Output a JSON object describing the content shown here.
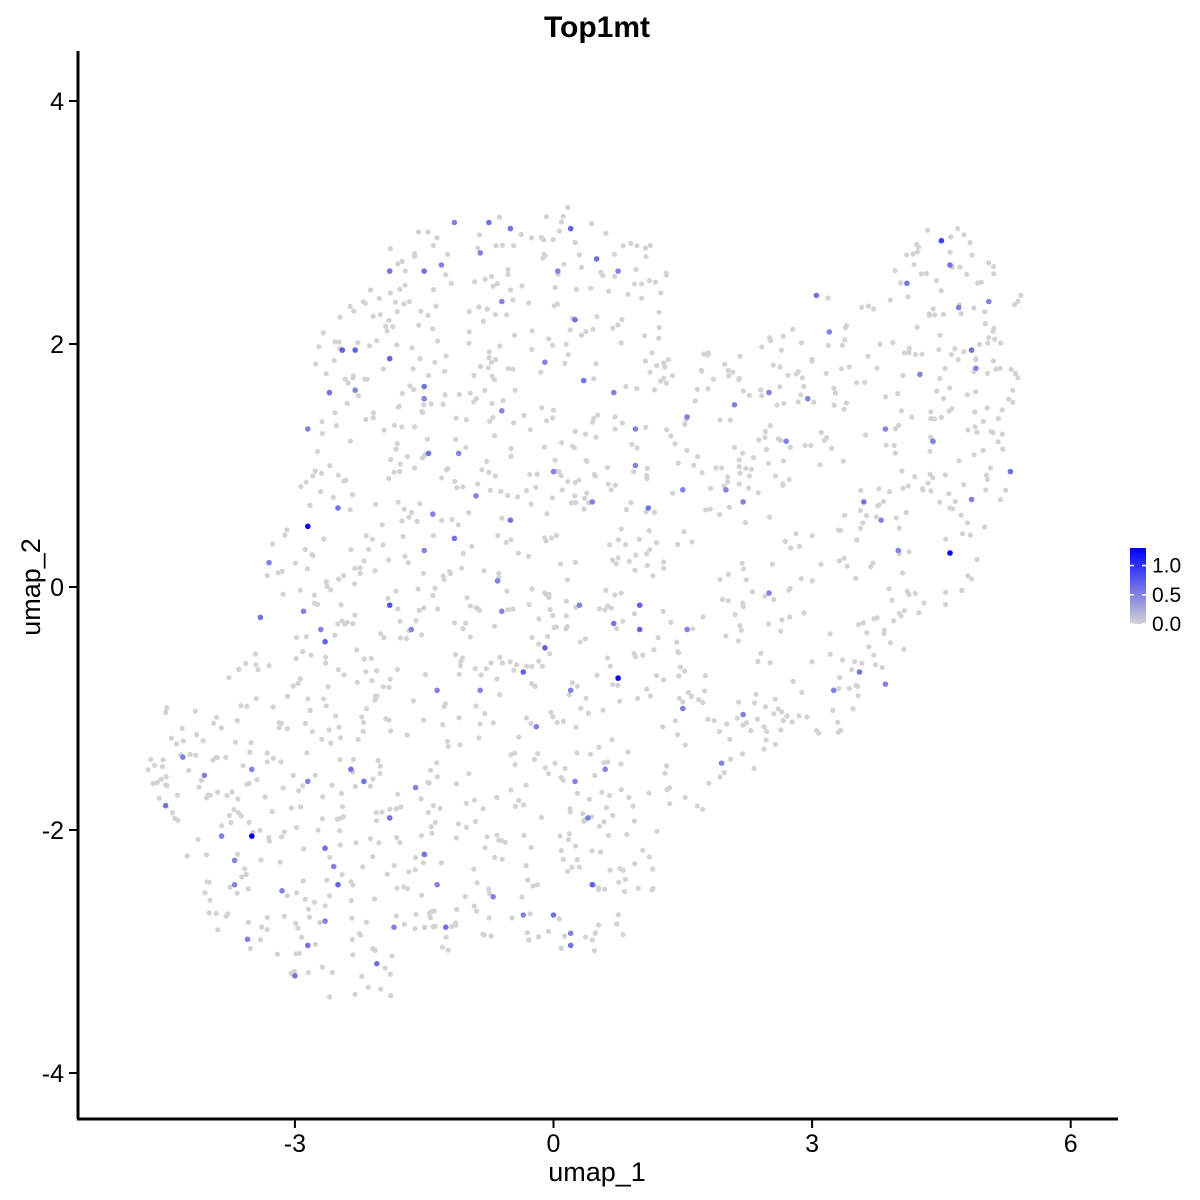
{
  "chart_data": {
    "type": "scatter",
    "title": "Top1mt",
    "xlabel": "umap_1",
    "ylabel": "umap_2",
    "xlim": [
      -5.4,
      6.6
    ],
    "ylim": [
      -4.4,
      4.4
    ],
    "xticks": [
      -3,
      0,
      3,
      6
    ],
    "xtick_labels": [
      "-3",
      "0",
      "3",
      "6"
    ],
    "yticks": [
      -4,
      -2,
      0,
      2,
      4
    ],
    "ytick_labels": [
      "-4",
      "-2",
      "0",
      "2",
      "4"
    ],
    "grid": false,
    "legend_position": "right",
    "color_scale": {
      "low_color": "#d3d3d3",
      "high_color": "#0000ff",
      "min": 0,
      "max": 1.3,
      "ticks": [
        0.0,
        0.5,
        1.0
      ],
      "tick_labels": [
        "0.0",
        "0.5",
        "1.0"
      ]
    },
    "points_note": "approximate reading of the cell cloud; zero-expression cells omitted individually below, expressing cells listed",
    "expressing_points": [
      [
        -2.85,
        0.5,
        1.3
      ],
      [
        -3.5,
        -2.05,
        1.3
      ],
      [
        0.75,
        -0.75,
        1.3
      ],
      [
        4.6,
        0.28,
        1.3
      ],
      [
        4.5,
        2.85,
        0.9
      ],
      [
        -2.3,
        1.95,
        0.7
      ],
      [
        -2.45,
        1.95,
        0.7
      ],
      [
        -1.9,
        1.88,
        0.7
      ],
      [
        -1.5,
        1.65,
        0.6
      ],
      [
        -1.15,
        3.0,
        0.5
      ],
      [
        -0.75,
        3.0,
        0.6
      ],
      [
        -0.5,
        2.95,
        0.6
      ],
      [
        0.2,
        2.95,
        0.7
      ],
      [
        -1.9,
        2.6,
        0.6
      ],
      [
        -1.5,
        2.6,
        0.6
      ],
      [
        -1.3,
        2.65,
        0.5
      ],
      [
        -0.85,
        2.75,
        0.5
      ],
      [
        0.05,
        2.6,
        0.5
      ],
      [
        0.5,
        2.7,
        0.6
      ],
      [
        0.75,
        2.6,
        0.5
      ],
      [
        0.25,
        2.2,
        0.6
      ],
      [
        -0.6,
        2.35,
        0.5
      ],
      [
        -2.6,
        1.6,
        0.6
      ],
      [
        -2.85,
        1.3,
        0.5
      ],
      [
        -2.3,
        1.62,
        0.5
      ],
      [
        -1.5,
        1.55,
        0.5
      ],
      [
        -1.45,
        1.1,
        0.6
      ],
      [
        -1.1,
        1.1,
        0.5
      ],
      [
        -0.6,
        1.45,
        0.5
      ],
      [
        -0.1,
        1.85,
        0.5
      ],
      [
        0.35,
        1.7,
        0.6
      ],
      [
        0.7,
        1.6,
        0.5
      ],
      [
        0.95,
        1.3,
        0.5
      ],
      [
        1.55,
        1.4,
        0.5
      ],
      [
        2.1,
        1.5,
        0.5
      ],
      [
        2.5,
        1.6,
        0.5
      ],
      [
        2.95,
        1.55,
        0.5
      ],
      [
        3.2,
        2.1,
        0.5
      ],
      [
        3.05,
        2.4,
        0.6
      ],
      [
        4.1,
        2.5,
        0.6
      ],
      [
        4.25,
        1.75,
        0.5
      ],
      [
        4.6,
        2.65,
        0.6
      ],
      [
        4.7,
        2.3,
        0.5
      ],
      [
        4.85,
        1.95,
        0.6
      ],
      [
        4.9,
        1.8,
        0.5
      ],
      [
        5.05,
        2.35,
        0.5
      ],
      [
        5.3,
        0.95,
        0.6
      ],
      [
        4.85,
        0.72,
        0.5
      ],
      [
        4.4,
        1.2,
        0.5
      ],
      [
        3.85,
        1.3,
        0.5
      ],
      [
        3.6,
        0.7,
        0.6
      ],
      [
        3.8,
        0.55,
        0.5
      ],
      [
        4.0,
        0.3,
        0.5
      ],
      [
        2.7,
        1.2,
        0.5
      ],
      [
        2.0,
        0.8,
        0.5
      ],
      [
        2.2,
        0.7,
        0.5
      ],
      [
        1.5,
        0.8,
        0.5
      ],
      [
        1.1,
        0.65,
        0.6
      ],
      [
        0.95,
        1.0,
        0.5
      ],
      [
        0.45,
        0.7,
        0.5
      ],
      [
        0.0,
        0.95,
        0.5
      ],
      [
        -0.5,
        0.55,
        0.6
      ],
      [
        -0.9,
        0.75,
        0.5
      ],
      [
        -1.4,
        0.6,
        0.5
      ],
      [
        -1.15,
        0.4,
        0.6
      ],
      [
        -1.5,
        0.3,
        0.5
      ],
      [
        -2.5,
        0.65,
        0.6
      ],
      [
        -3.3,
        0.2,
        0.5
      ],
      [
        -3.4,
        -0.25,
        0.6
      ],
      [
        -2.9,
        -0.2,
        0.5
      ],
      [
        -2.7,
        -0.35,
        0.5
      ],
      [
        -2.65,
        -0.45,
        0.7
      ],
      [
        -1.9,
        -0.15,
        0.8
      ],
      [
        -1.65,
        -0.35,
        0.5
      ],
      [
        -0.6,
        -0.2,
        0.5
      ],
      [
        -0.65,
        0.05,
        0.5
      ],
      [
        -0.35,
        -0.7,
        0.7
      ],
      [
        -0.1,
        -0.5,
        0.7
      ],
      [
        0.3,
        -0.15,
        0.5
      ],
      [
        0.7,
        -0.3,
        0.6
      ],
      [
        1.0,
        -0.15,
        0.7
      ],
      [
        1.0,
        -0.35,
        0.7
      ],
      [
        1.55,
        -0.35,
        0.5
      ],
      [
        2.5,
        -0.05,
        0.5
      ],
      [
        3.55,
        -0.7,
        0.6
      ],
      [
        3.25,
        -0.85,
        0.5
      ],
      [
        1.5,
        -1.0,
        0.5
      ],
      [
        2.2,
        -1.05,
        0.5
      ],
      [
        1.95,
        -1.45,
        0.5
      ],
      [
        0.25,
        -1.6,
        0.5
      ],
      [
        0.45,
        -2.45,
        0.7
      ],
      [
        0.4,
        -1.9,
        0.5
      ],
      [
        0.0,
        -2.7,
        0.6
      ],
      [
        0.2,
        -2.85,
        0.5
      ],
      [
        0.2,
        -2.95,
        0.6
      ],
      [
        -0.35,
        -2.7,
        0.5
      ],
      [
        -0.7,
        -2.55,
        0.5
      ],
      [
        -1.25,
        -2.8,
        0.6
      ],
      [
        -1.5,
        -2.2,
        0.6
      ],
      [
        -1.35,
        -2.45,
        0.5
      ],
      [
        -1.85,
        -2.8,
        0.5
      ],
      [
        -2.05,
        -3.1,
        0.6
      ],
      [
        -2.5,
        -2.45,
        0.7
      ],
      [
        -2.55,
        -2.3,
        0.5
      ],
      [
        -2.35,
        -1.5,
        0.6
      ],
      [
        -2.2,
        -1.6,
        0.6
      ],
      [
        -1.9,
        -1.9,
        0.6
      ],
      [
        -2.65,
        -2.15,
        0.6
      ],
      [
        -2.85,
        -2.95,
        0.6
      ],
      [
        -3.0,
        -3.2,
        0.6
      ],
      [
        -3.55,
        -2.9,
        0.5
      ],
      [
        -3.7,
        -2.45,
        0.5
      ],
      [
        -3.7,
        -2.25,
        0.5
      ],
      [
        -3.5,
        -1.5,
        0.5
      ],
      [
        -3.85,
        -2.05,
        0.5
      ],
      [
        -4.05,
        -1.55,
        0.5
      ],
      [
        -4.3,
        -1.4,
        0.5
      ],
      [
        -4.5,
        -1.8,
        0.6
      ],
      [
        -2.65,
        -2.75,
        0.5
      ],
      [
        -3.15,
        -2.5,
        0.5
      ],
      [
        -2.85,
        -1.6,
        0.5
      ],
      [
        -1.6,
        -1.65,
        0.5
      ],
      [
        -0.2,
        -1.15,
        0.5
      ],
      [
        0.2,
        -0.85,
        0.5
      ],
      [
        -1.35,
        -0.85,
        0.5
      ],
      [
        -0.85,
        -0.85,
        0.5
      ],
      [
        0.6,
        -1.5,
        0.5
      ],
      [
        3.85,
        -0.8,
        0.5
      ]
    ]
  }
}
